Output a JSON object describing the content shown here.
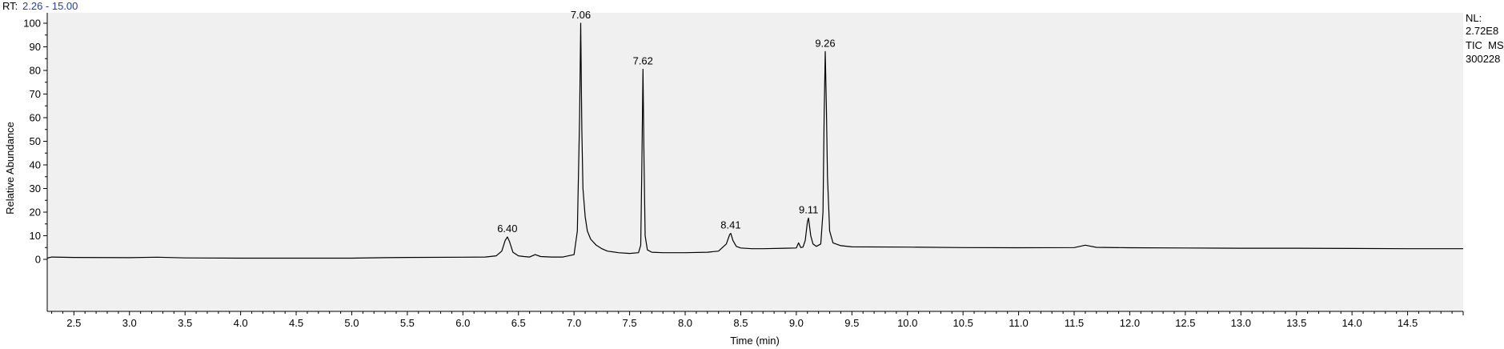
{
  "header": {
    "rt_label": "RT:",
    "rt_range": "2.26 - 15.00"
  },
  "info": {
    "lines": [
      "NL:",
      "2.72E8",
      "TIC  MS",
      "300228"
    ]
  },
  "colors": {
    "plot_bg": "#f0f0f0",
    "trace": "#000000",
    "rt_range_text": "#1f3fa8",
    "axis": "#000000"
  },
  "chart_data": {
    "type": "line",
    "title": "",
    "xlabel": "Time (min)",
    "ylabel": "Relative Abundance",
    "xlim": [
      2.26,
      15.0
    ],
    "ylim": [
      0,
      100
    ],
    "grid": false,
    "x_ticks": [
      "2.5",
      "3.0",
      "3.5",
      "4.0",
      "4.5",
      "5.0",
      "5.5",
      "6.0",
      "6.5",
      "7.0",
      "7.5",
      "8.0",
      "8.5",
      "9.0",
      "9.5",
      "10.0",
      "10.5",
      "11.0",
      "11.5",
      "12.0",
      "12.5",
      "13.0",
      "13.5",
      "14.0",
      "14.5"
    ],
    "y_ticks": [
      "0",
      "10",
      "20",
      "30",
      "40",
      "50",
      "60",
      "70",
      "80",
      "90",
      "100"
    ],
    "peaks": [
      {
        "label": "6.40",
        "x": 6.4,
        "y": 9.5
      },
      {
        "label": "7.06",
        "x": 7.06,
        "y": 100
      },
      {
        "label": "7.62",
        "x": 7.62,
        "y": 80.5
      },
      {
        "label": "8.41",
        "x": 8.41,
        "y": 11
      },
      {
        "label": "9.11",
        "x": 9.11,
        "y": 17.5
      },
      {
        "label": "9.26",
        "x": 9.26,
        "y": 88
      }
    ],
    "series": [
      {
        "x": [
          2.26,
          2.3,
          2.5,
          3.0,
          3.25,
          3.5,
          4.0,
          4.5,
          5.0,
          5.3,
          5.5,
          6.0,
          6.2,
          6.3,
          6.35,
          6.38,
          6.4,
          6.42,
          6.45,
          6.5,
          6.55,
          6.6,
          6.65,
          6.7,
          6.8,
          6.9,
          7.0,
          7.03,
          7.05,
          7.06,
          7.07,
          7.08,
          7.1,
          7.12,
          7.15,
          7.2,
          7.25,
          7.3,
          7.4,
          7.5,
          7.58,
          7.6,
          7.61,
          7.62,
          7.63,
          7.64,
          7.66,
          7.7,
          7.8,
          8.0,
          8.2,
          8.3,
          8.37,
          8.4,
          8.41,
          8.43,
          8.46,
          8.5,
          8.6,
          8.7,
          8.9,
          9.0,
          9.02,
          9.04,
          9.06,
          9.08,
          9.1,
          9.11,
          9.13,
          9.15,
          9.18,
          9.22,
          9.24,
          9.25,
          9.26,
          9.27,
          9.28,
          9.3,
          9.33,
          9.4,
          9.5,
          10.0,
          10.5,
          11.0,
          11.5,
          11.6,
          11.7,
          12.0,
          12.5,
          13.0,
          13.5,
          14.0,
          14.5,
          15.0
        ],
        "y": [
          0.5,
          1.0,
          0.8,
          0.7,
          0.9,
          0.6,
          0.5,
          0.5,
          0.5,
          0.7,
          0.8,
          0.9,
          1.0,
          1.5,
          3.5,
          8.0,
          9.5,
          7.5,
          3.0,
          1.5,
          1.2,
          1.0,
          2.0,
          1.2,
          1.0,
          1.0,
          2.0,
          12.0,
          60.0,
          100.0,
          55.0,
          30.0,
          18.0,
          12.0,
          8.5,
          6.0,
          4.5,
          3.5,
          2.8,
          2.5,
          2.8,
          6.0,
          40.0,
          80.5,
          42.0,
          10.0,
          4.0,
          3.0,
          2.8,
          2.8,
          3.0,
          3.5,
          6.5,
          10.5,
          11.0,
          8.0,
          5.5,
          4.8,
          4.5,
          4.5,
          4.7,
          4.8,
          7.0,
          5.0,
          5.2,
          8.0,
          16.0,
          17.5,
          10.0,
          6.5,
          5.5,
          6.5,
          20.0,
          60.0,
          88.0,
          65.0,
          35.0,
          12.0,
          7.0,
          5.8,
          5.3,
          5.2,
          5.0,
          4.9,
          5.0,
          6.0,
          5.1,
          4.9,
          4.8,
          4.7,
          4.7,
          4.6,
          4.5,
          4.5
        ]
      }
    ]
  }
}
